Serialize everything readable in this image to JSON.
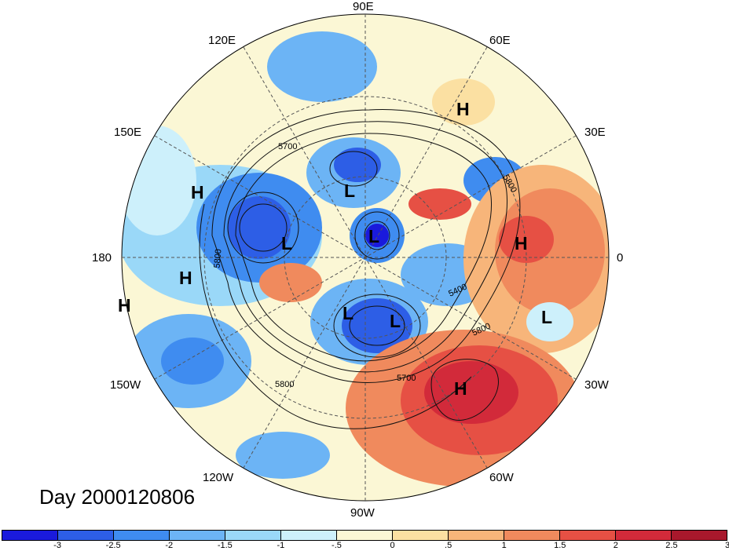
{
  "title": "Day 2000120806",
  "longitude_labels": {
    "l90e": "90E",
    "l60e": "60E",
    "l120e": "120E",
    "l30e": "30E",
    "l150e": "150E",
    "l180": "180",
    "l0": "0",
    "l150w": "150W",
    "l30w": "30W",
    "l120w": "120W",
    "l60w": "60W",
    "l90w": "90W"
  },
  "colorbar": {
    "colors": [
      "#1a1adc",
      "#2d5ee6",
      "#3f8cf0",
      "#6cb4f5",
      "#9ad8f8",
      "#cdf0fb",
      "#fbf7d5",
      "#fbe0a2",
      "#f7b57a",
      "#f08a5d",
      "#e65044",
      "#d22a3a",
      "#a8182c"
    ],
    "ticks": [
      "-3",
      "-2.5",
      "-2",
      "-1.5",
      "-1",
      "-.5",
      "0",
      ".5",
      "1",
      "1.5",
      "2",
      "2.5",
      "3"
    ]
  },
  "contour_labels": [
    "5700",
    "5800",
    "5800",
    "5800",
    "5400",
    "5800",
    "5700",
    "5800"
  ],
  "pressure_centers": [
    {
      "label": "H",
      "lon": 60
    },
    {
      "label": "H",
      "lon": 150
    },
    {
      "label": "L",
      "lon": 90
    },
    {
      "label": "L",
      "lon": 140
    },
    {
      "label": "L",
      "lon": 100
    },
    {
      "label": "H",
      "lon": 5
    },
    {
      "label": "H",
      "lon": 170
    },
    {
      "label": "H",
      "lon": 175
    },
    {
      "label": "L",
      "lon": -10
    },
    {
      "label": "L",
      "lon": -90
    },
    {
      "label": "L",
      "lon": -80
    },
    {
      "label": "H",
      "lon": -40
    }
  ]
}
